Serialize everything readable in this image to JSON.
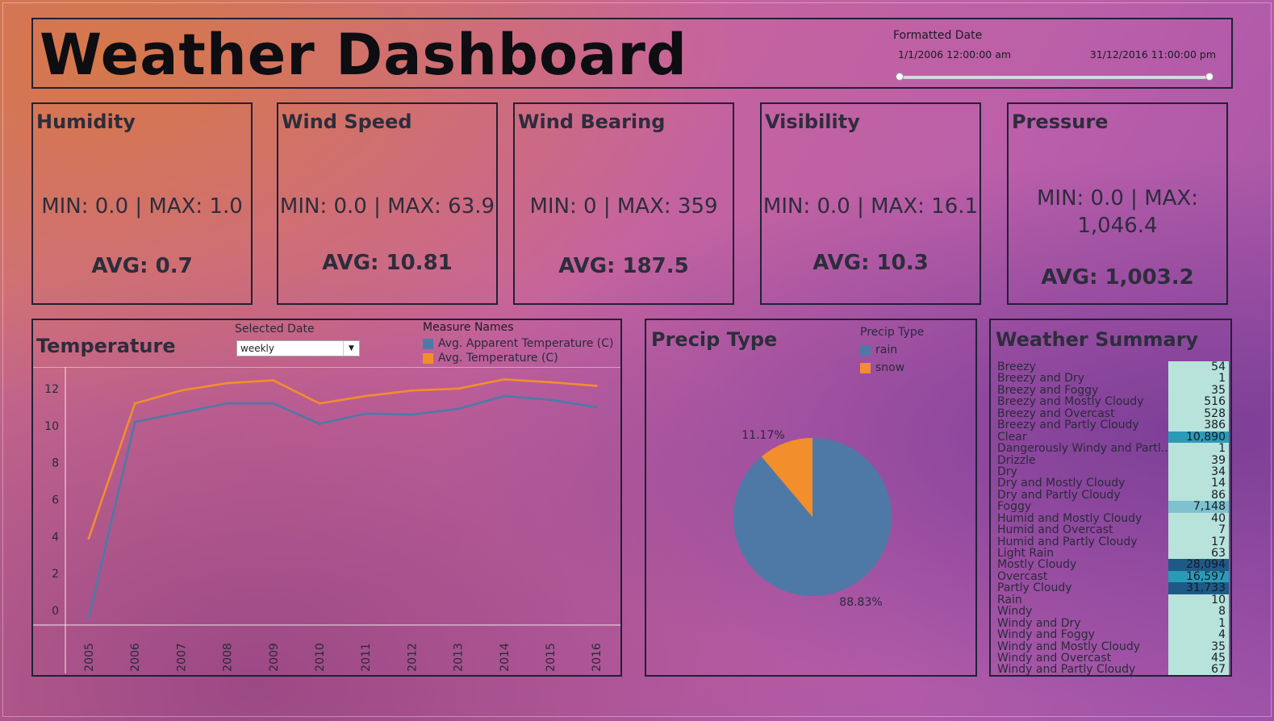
{
  "header": {
    "title": "Weather Dashboard",
    "filter_label": "Formatted Date",
    "start_date": "1/1/2006 12:00:00 am",
    "end_date": "31/12/2016 11:00:00 pm"
  },
  "kpis": {
    "humidity": {
      "title": "Humidity",
      "minmax": "MIN: 0.0 | MAX:  1.0",
      "avg": "AVG: 0.7"
    },
    "wind_speed": {
      "title": "Wind Speed",
      "minmax": "MIN: 0.0 | MAX:  63.9",
      "avg": "AVG: 10.81"
    },
    "wind_bearing": {
      "title": "Wind Bearing",
      "minmax": "MIN: 0 | MAX:  359",
      "avg": "AVG: 187.5"
    },
    "visibility": {
      "title": "Visibility",
      "minmax": "MIN: 0.0 | MAX:  16.1",
      "avg": "AVG: 10.3"
    },
    "pressure": {
      "title": "Pressure",
      "minmax": "MIN: 0.0 | MAX: 1,046.4",
      "avg": "AVG: 1,003.2"
    }
  },
  "temperature": {
    "title": "Temperature",
    "selected_date_label": "Selected Date",
    "selected_date_value": "weekly",
    "legend_label": "Measure Names"
  },
  "precip": {
    "title": "Precip Type",
    "legend_label": "Precip Type"
  },
  "summary": {
    "title": "Weather Summary",
    "rows": [
      {
        "name": "Breezy",
        "value": "54"
      },
      {
        "name": "Breezy and Dry",
        "value": "1"
      },
      {
        "name": "Breezy and Foggy",
        "value": "35"
      },
      {
        "name": "Breezy and Mostly Cloudy",
        "value": "516"
      },
      {
        "name": "Breezy and Overcast",
        "value": "528"
      },
      {
        "name": "Breezy and Partly Cloudy",
        "value": "386"
      },
      {
        "name": "Clear",
        "value": "10,890"
      },
      {
        "name": "Dangerously Windy and Partl..",
        "value": "1"
      },
      {
        "name": "Drizzle",
        "value": "39"
      },
      {
        "name": "Dry",
        "value": "34"
      },
      {
        "name": "Dry and Mostly Cloudy",
        "value": "14"
      },
      {
        "name": "Dry and Partly Cloudy",
        "value": "86"
      },
      {
        "name": "Foggy",
        "value": "7,148"
      },
      {
        "name": "Humid and Mostly Cloudy",
        "value": "40"
      },
      {
        "name": "Humid and Overcast",
        "value": "7"
      },
      {
        "name": "Humid and Partly Cloudy",
        "value": "17"
      },
      {
        "name": "Light Rain",
        "value": "63"
      },
      {
        "name": "Mostly Cloudy",
        "value": "28,094"
      },
      {
        "name": "Overcast",
        "value": "16,597"
      },
      {
        "name": "Partly Cloudy",
        "value": "31,733"
      },
      {
        "name": "Rain",
        "value": "10"
      },
      {
        "name": "Windy",
        "value": "8"
      },
      {
        "name": "Windy and Dry",
        "value": "1"
      },
      {
        "name": "Windy and Foggy",
        "value": "4"
      },
      {
        "name": "Windy and Mostly Cloudy",
        "value": "35"
      },
      {
        "name": "Windy and Overcast",
        "value": "45"
      },
      {
        "name": "Windy and Partly Cloudy",
        "value": "67"
      }
    ]
  },
  "colors": {
    "apparent": "#4e79a7",
    "temperature": "#f28e2b",
    "rain": "#4e79a7",
    "snow": "#f28e2b",
    "heat_low": "#b7e3da",
    "heat_mid": "#7fc2cf",
    "heat_high": "#2a9bb7",
    "heat_max": "#1e5a86"
  },
  "chart_data": [
    {
      "type": "line",
      "title": "Temperature",
      "x": [
        "2005",
        "2006",
        "2007",
        "2008",
        "2009",
        "2010",
        "2011",
        "2012",
        "2013",
        "2014",
        "2015",
        "2016"
      ],
      "series": [
        {
          "name": "Avg. Apparent Temperature (C)",
          "values": [
            -0.4,
            10.2,
            10.7,
            11.2,
            11.2,
            10.1,
            10.65,
            10.6,
            10.9,
            11.6,
            11.4,
            11.0
          ]
        },
        {
          "name": "Avg. Temperature (C)",
          "values": [
            3.9,
            11.2,
            11.9,
            12.3,
            12.45,
            11.2,
            11.6,
            11.9,
            12.0,
            12.5,
            12.35,
            12.15
          ]
        }
      ],
      "yticks": [
        "0",
        "2",
        "4",
        "6",
        "8",
        "10",
        "12"
      ],
      "ylim": [
        -0.7,
        13
      ],
      "grid": false
    },
    {
      "type": "pie",
      "title": "Precip Type",
      "series": [
        {
          "name": "rain",
          "value": 88.83,
          "label": "88.83%"
        },
        {
          "name": "snow",
          "value": 11.17,
          "label": "11.17%"
        }
      ]
    }
  ]
}
